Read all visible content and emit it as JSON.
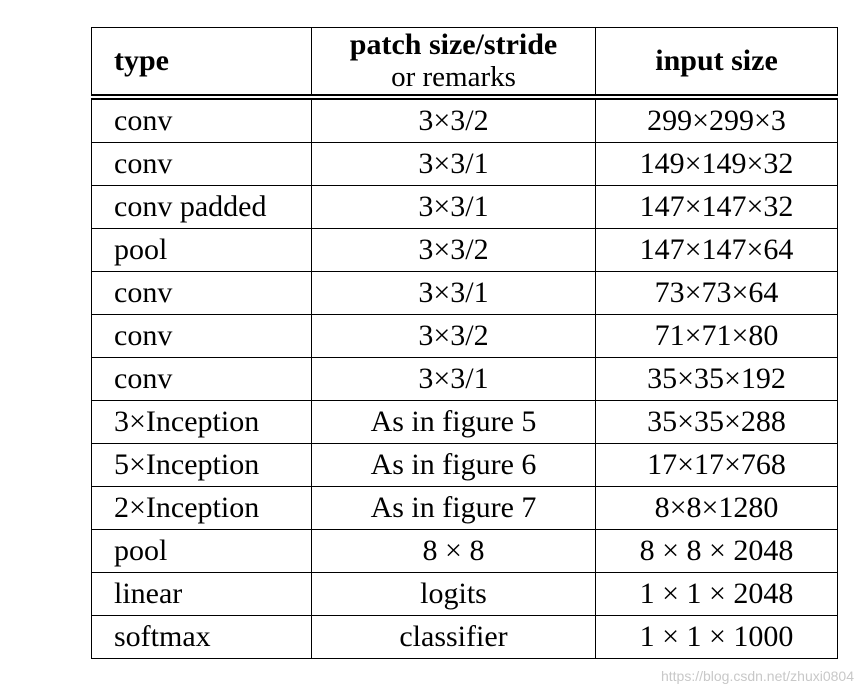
{
  "table": {
    "headers": {
      "type": "type",
      "patch_line1": "patch size/stride",
      "patch_line2": "or remarks",
      "input": "input size"
    },
    "rows": [
      {
        "type": "conv",
        "patch": "3×3/2",
        "input": "299×299×3"
      },
      {
        "type": "conv",
        "patch": "3×3/1",
        "input": "149×149×32"
      },
      {
        "type": "conv padded",
        "patch": "3×3/1",
        "input": "147×147×32"
      },
      {
        "type": "pool",
        "patch": "3×3/2",
        "input": "147×147×64"
      },
      {
        "type": "conv",
        "patch": "3×3/1",
        "input": "73×73×64"
      },
      {
        "type": "conv",
        "patch": "3×3/2",
        "input": "71×71×80"
      },
      {
        "type": "conv",
        "patch": "3×3/1",
        "input": "35×35×192"
      },
      {
        "type": "3×Inception",
        "patch": "As in figure 5",
        "input": "35×35×288"
      },
      {
        "type": "5×Inception",
        "patch": "As in figure 6",
        "input": "17×17×768"
      },
      {
        "type": "2×Inception",
        "patch": "As in figure 7",
        "input": "8×8×1280"
      },
      {
        "type": "pool",
        "patch": "8 × 8",
        "input": "8 × 8 × 2048"
      },
      {
        "type": "linear",
        "patch": "logits",
        "input": "1 × 1 × 2048"
      },
      {
        "type": "softmax",
        "patch": "classifier",
        "input": "1 × 1 × 1000"
      }
    ]
  },
  "watermark": "https://blog.csdn.net/zhuxi0804"
}
